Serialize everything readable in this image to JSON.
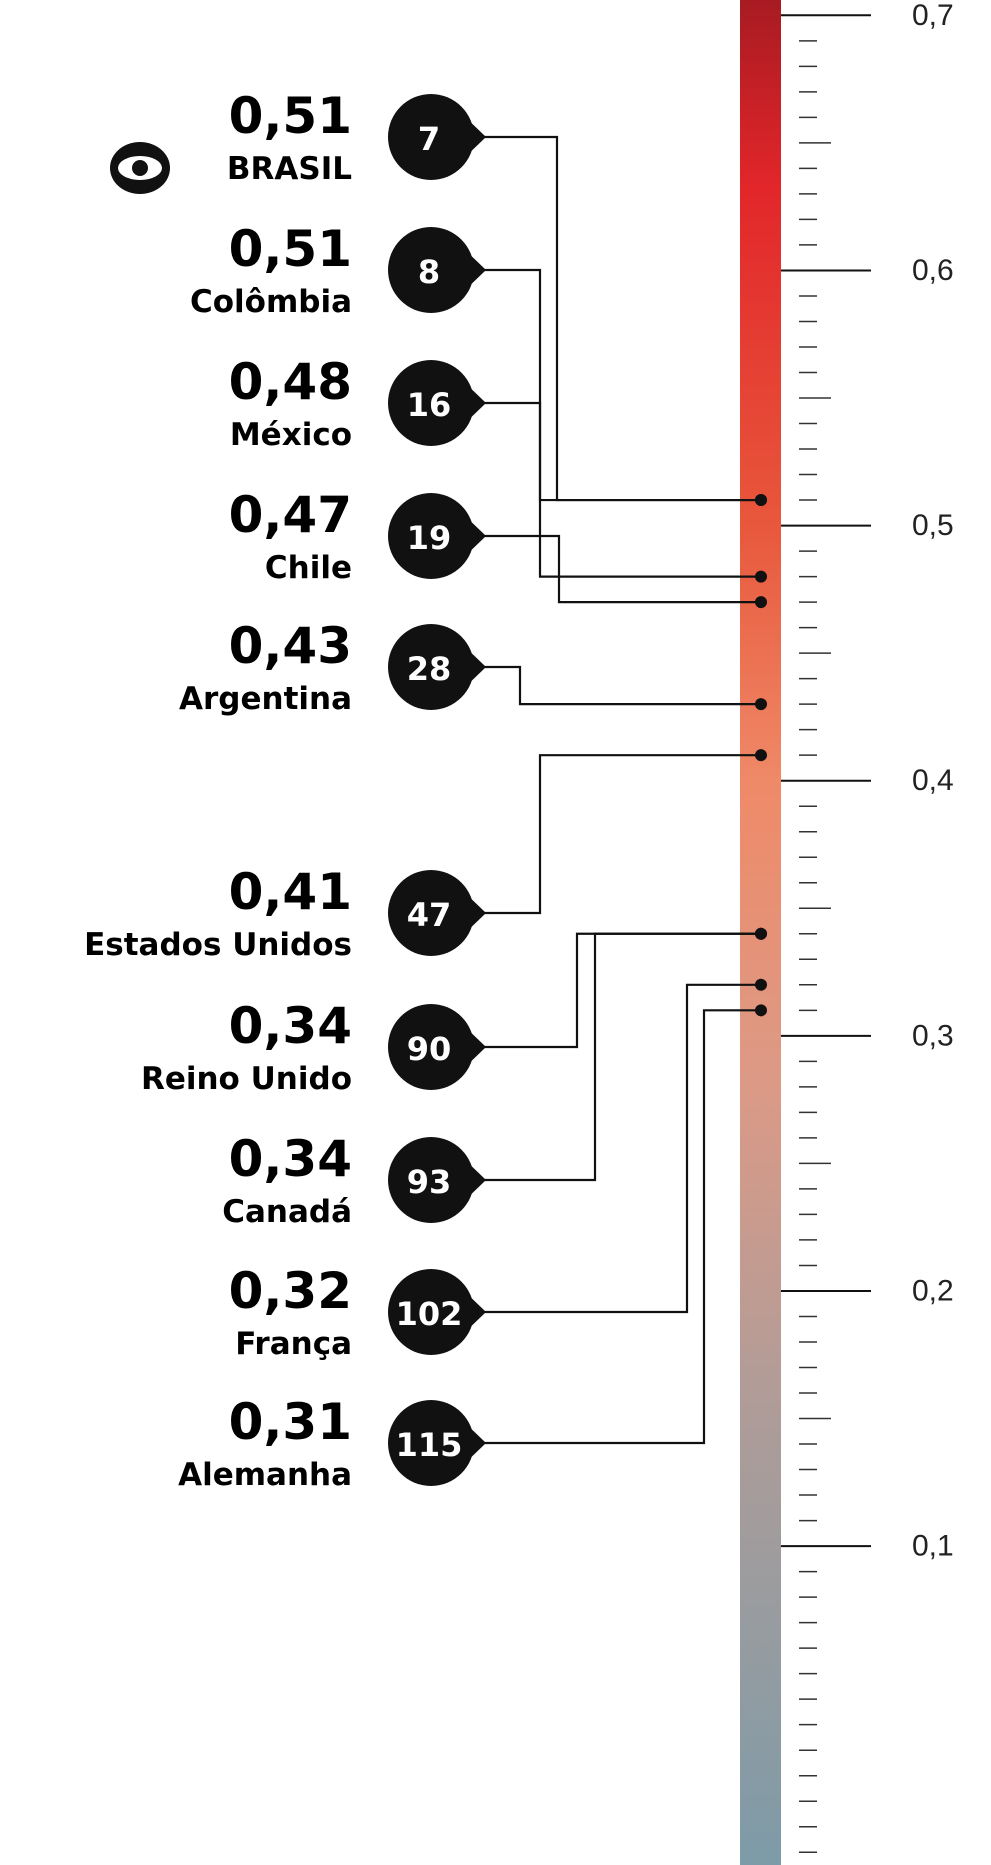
{
  "chart_data": {
    "type": "scale-ranking",
    "categories": [
      "BRASIL",
      "Colômbia",
      "México",
      "Chile",
      "Argentina",
      "Estados Unidos",
      "Reino Unido",
      "Canadá",
      "França",
      "Alemanha"
    ],
    "values": [
      0.51,
      0.51,
      0.48,
      0.47,
      0.43,
      0.41,
      0.34,
      0.34,
      0.32,
      0.31
    ],
    "value_labels": [
      "0,51",
      "0,51",
      "0,48",
      "0,47",
      "0,43",
      "0,41",
      "0,34",
      "0,34",
      "0,32",
      "0,31"
    ],
    "ranks": [
      7,
      8,
      16,
      19,
      28,
      47,
      90,
      93,
      102,
      115
    ],
    "ylim": [
      -0.025,
      0.706
    ],
    "yticks": [
      {
        "value": 0.7,
        "label": "0,7"
      },
      {
        "value": 0.6,
        "label": "0,6"
      },
      {
        "value": 0.5,
        "label": "0,5"
      },
      {
        "value": 0.4,
        "label": "0,4"
      },
      {
        "value": 0.3,
        "label": "0,3"
      },
      {
        "value": 0.2,
        "label": "0,2"
      },
      {
        "value": 0.1,
        "label": "0,1"
      }
    ],
    "color": "#111111"
  }
}
